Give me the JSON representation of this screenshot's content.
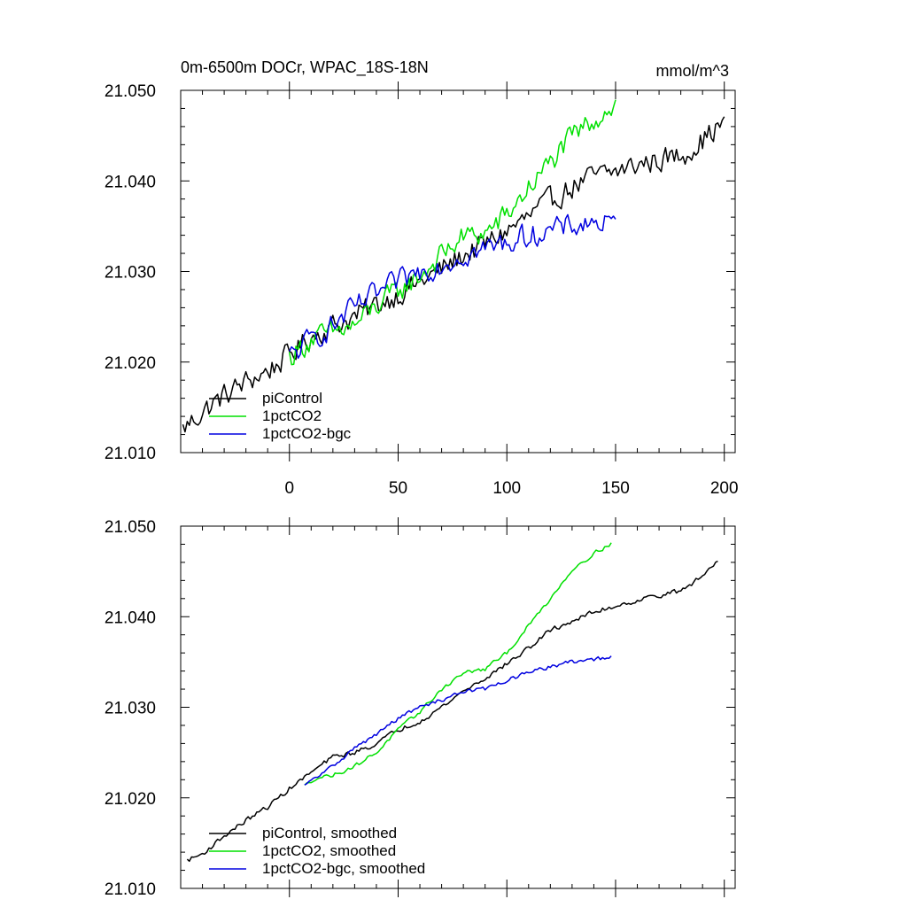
{
  "chart_data": [
    {
      "type": "line",
      "title": "0m-6500m DOCr, WPAC_18S-18N",
      "units": "mmol/m^3",
      "xlim": [
        -50,
        205
      ],
      "ylim": [
        21.01,
        21.05
      ],
      "xticks": [
        0,
        50,
        100,
        150,
        200
      ],
      "yticks": [
        21.01,
        21.02,
        21.03,
        21.04,
        21.05
      ],
      "ytick_labels": [
        "21.010",
        "21.020",
        "21.030",
        "21.040",
        "21.050"
      ],
      "series": [
        {
          "name": "piControl",
          "color": "#000000",
          "x": [
            -49,
            -40,
            -30,
            -20,
            -10,
            0,
            10,
            20,
            30,
            40,
            50,
            60,
            70,
            80,
            90,
            100,
            110,
            120,
            130,
            140,
            150,
            160,
            170,
            180,
            190,
            200
          ],
          "y": [
            21.0126,
            21.0145,
            21.0163,
            21.0178,
            21.019,
            21.0208,
            21.0228,
            21.024,
            21.025,
            21.0263,
            21.0275,
            21.0288,
            21.0302,
            21.0318,
            21.033,
            21.0345,
            21.036,
            21.0378,
            21.0393,
            21.0405,
            21.041,
            21.0418,
            21.0423,
            21.0428,
            21.0445,
            21.0465
          ],
          "noise": 0.0012
        },
        {
          "name": "1pctCO2",
          "color": "#00e000",
          "x": [
            0,
            10,
            20,
            30,
            40,
            50,
            60,
            70,
            80,
            90,
            100,
            110,
            120,
            130,
            140,
            150
          ],
          "y": [
            21.0205,
            21.0225,
            21.0232,
            21.024,
            21.0262,
            21.0278,
            21.0295,
            21.0318,
            21.0338,
            21.0342,
            21.0362,
            21.0392,
            21.042,
            21.0448,
            21.0468,
            21.0485
          ],
          "noise": 0.0012
        },
        {
          "name": "1pctCO2-bgc",
          "color": "#0000e0",
          "x": [
            0,
            10,
            20,
            30,
            40,
            50,
            60,
            70,
            80,
            90,
            100,
            110,
            120,
            130,
            140,
            150
          ],
          "y": [
            21.0205,
            21.0225,
            21.024,
            21.026,
            21.0275,
            21.0288,
            21.03,
            21.0308,
            21.0318,
            21.0325,
            21.0332,
            21.034,
            21.0345,
            21.035,
            21.0355,
            21.035
          ],
          "noise": 0.0012
        }
      ],
      "legend": [
        "piControl",
        "1pctCO2",
        "1pctCO2-bgc"
      ]
    },
    {
      "type": "line",
      "xlim": [
        -50,
        205
      ],
      "ylim": [
        21.01,
        21.05
      ],
      "xticks": [
        0,
        50,
        100,
        150,
        200
      ],
      "yticks": [
        21.01,
        21.02,
        21.03,
        21.04,
        21.05
      ],
      "ytick_labels": [
        "21.010",
        "21.020",
        "21.030",
        "21.040",
        "21.050"
      ],
      "series": [
        {
          "name": "piControl, smoothed",
          "color": "#000000",
          "x": [
            -47,
            -40,
            -30,
            -20,
            -10,
            0,
            10,
            20,
            30,
            40,
            50,
            60,
            70,
            80,
            90,
            100,
            110,
            120,
            130,
            140,
            150,
            160,
            170,
            180,
            190,
            197
          ],
          "y": [
            21.0131,
            21.0138,
            21.0158,
            21.0175,
            21.019,
            21.021,
            21.0228,
            21.0245,
            21.025,
            21.026,
            21.0275,
            21.0285,
            21.03,
            21.0318,
            21.0332,
            21.0348,
            21.0365,
            21.0385,
            21.0395,
            21.0405,
            21.0412,
            21.0418,
            21.0424,
            21.0428,
            21.0445,
            21.0462
          ],
          "noise": 0.00025
        },
        {
          "name": "1pctCO2, smoothed",
          "color": "#00e000",
          "x": [
            7,
            12,
            20,
            30,
            40,
            50,
            60,
            70,
            80,
            90,
            100,
            110,
            120,
            130,
            140,
            148
          ],
          "y": [
            21.0213,
            21.0222,
            21.0225,
            21.0235,
            21.025,
            21.0275,
            21.0295,
            21.032,
            21.0338,
            21.0342,
            21.036,
            21.039,
            21.042,
            21.0452,
            21.047,
            21.0481
          ],
          "noise": 0.0002
        },
        {
          "name": "1pctCO2-bgc, smoothed",
          "color": "#0000e0",
          "x": [
            7,
            12,
            20,
            30,
            40,
            50,
            60,
            70,
            80,
            90,
            100,
            110,
            120,
            130,
            140,
            148
          ],
          "y": [
            21.0213,
            21.0222,
            21.0235,
            21.0255,
            21.027,
            21.0288,
            21.03,
            21.0308,
            21.0318,
            21.032,
            21.033,
            21.0338,
            21.0345,
            21.035,
            21.0353,
            21.0355
          ],
          "noise": 0.0002
        }
      ],
      "legend": [
        "piControl, smoothed",
        "1pctCO2, smoothed",
        "1pctCO2-bgc, smoothed"
      ]
    }
  ]
}
